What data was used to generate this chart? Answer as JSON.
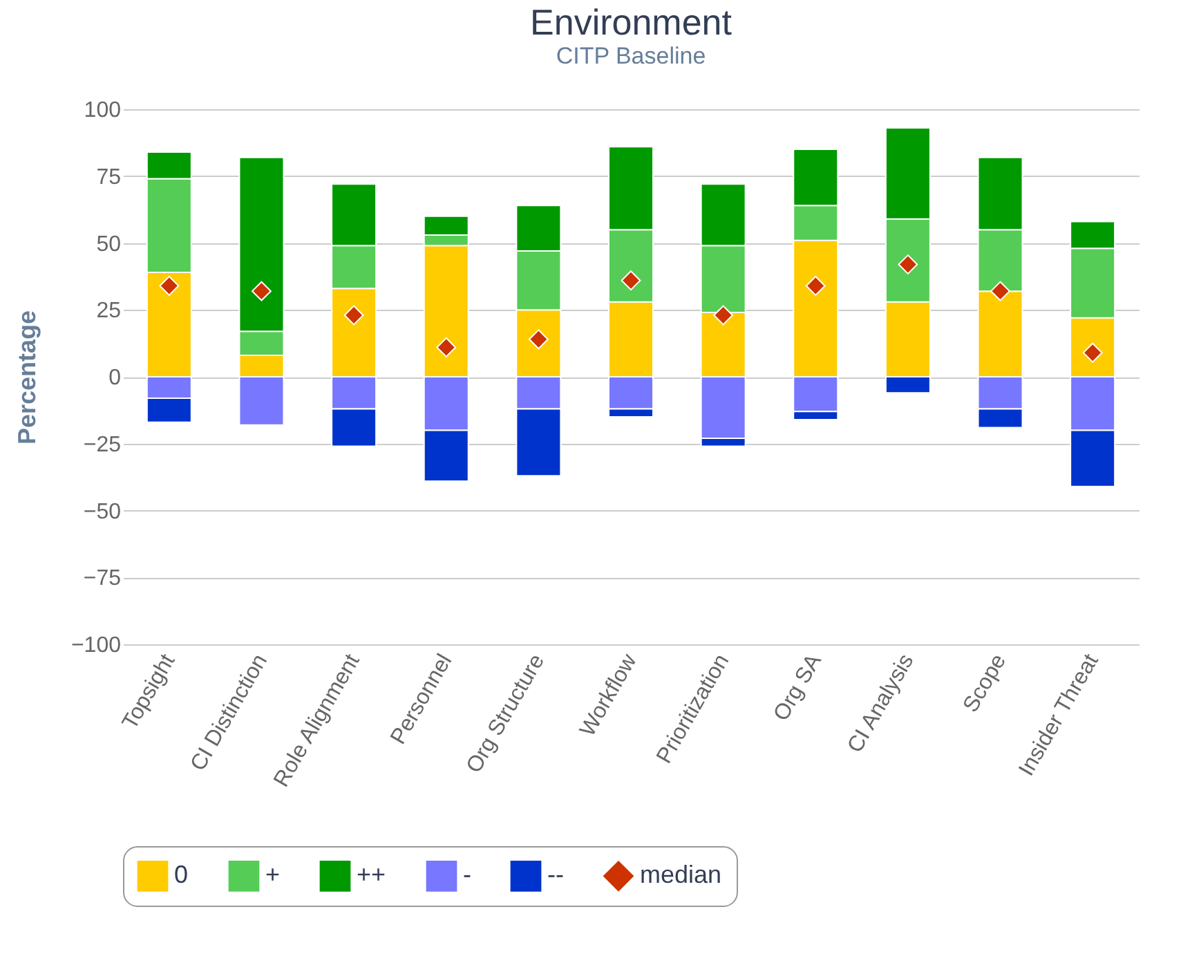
{
  "chart_data": {
    "type": "bar",
    "title": "Environment",
    "subtitle": "CITP Baseline",
    "ylabel": "Percentage",
    "categories": [
      "Topsight",
      "CI Distinction",
      "Role Alignment",
      "Personnel",
      "Org Structure",
      "Workflow",
      "Prioritization",
      "Org SA",
      "CI Analysis",
      "Scope",
      "Insider Threat"
    ],
    "stacked": true,
    "grid": "y",
    "legend": "bottom",
    "ylim": [
      -100,
      100
    ],
    "yticks": [
      -100,
      -75,
      -50,
      -25,
      0,
      25,
      50,
      75,
      100
    ],
    "series": [
      {
        "name": "0",
        "color": "#ffcc00",
        "values": [
          39,
          8,
          33,
          49,
          25,
          28,
          24,
          51,
          28,
          32,
          22
        ]
      },
      {
        "name": "+",
        "color": "#55cc55",
        "values": [
          35,
          9,
          16,
          4,
          22,
          27,
          25,
          13,
          31,
          23,
          26
        ]
      },
      {
        "name": "++",
        "color": "#009900",
        "values": [
          10,
          65,
          23,
          7,
          17,
          31,
          23,
          21,
          34,
          27,
          10
        ]
      },
      {
        "name": "-",
        "color": "#7777ff",
        "values": [
          -8,
          -18,
          -12,
          -20,
          -12,
          -12,
          -23,
          -13,
          null,
          -12,
          -20
        ]
      },
      {
        "name": "--",
        "color": "#0033cc",
        "values": [
          -9,
          null,
          -14,
          -19,
          -25,
          -3,
          -3,
          -3,
          -6,
          -7,
          -21
        ]
      },
      {
        "name": "median",
        "type": "scatter",
        "marker": "diamond",
        "color": "#cc3300",
        "x": [
          "Topsight",
          "CI Distinction",
          "Role Alignment",
          "Personnel",
          "Org Structure",
          "Workflow",
          "Prioritization",
          "Org SA",
          "CI Analysis",
          "Scope",
          "Insider Threat"
        ],
        "values": [
          34,
          32,
          23,
          11,
          14,
          36,
          23,
          34,
          42,
          32,
          9
        ]
      }
    ]
  }
}
